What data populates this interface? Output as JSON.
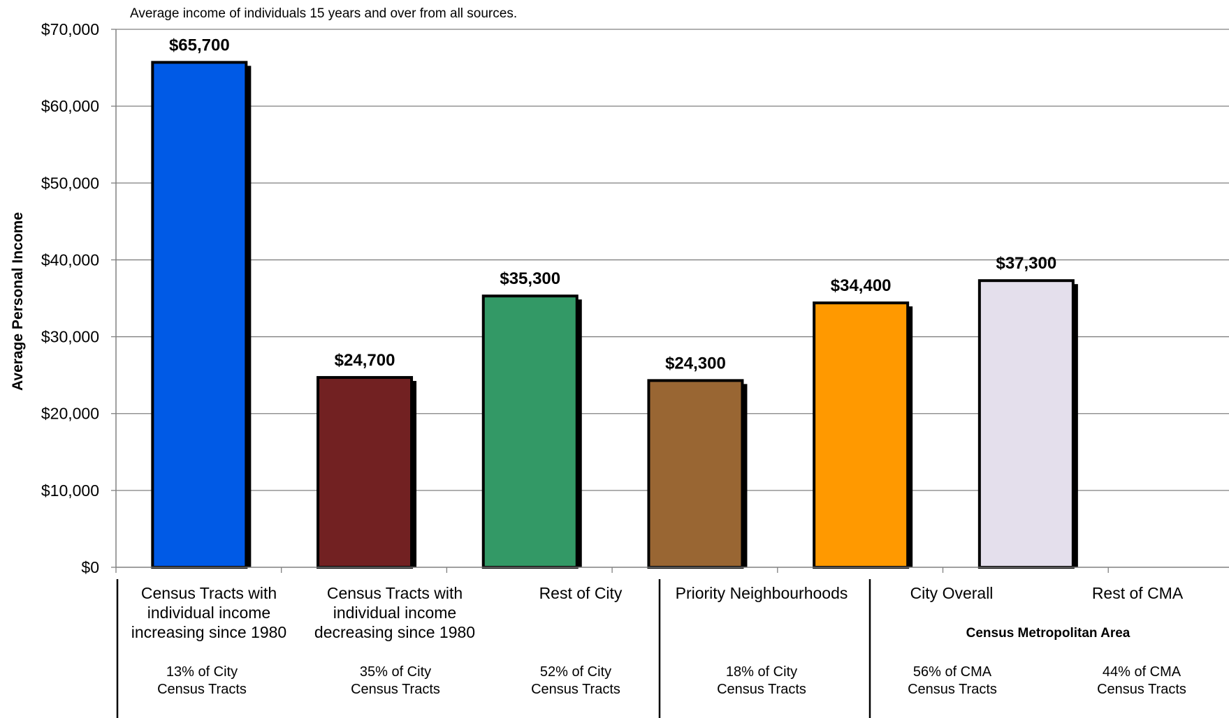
{
  "chart_data": {
    "type": "bar",
    "subtitle": "Average income of individuals 15 years and over from all sources.",
    "ylabel": "Average Personal Income",
    "ylim": [
      0,
      70000
    ],
    "yticks": [
      "$0",
      "$10,000",
      "$20,000",
      "$30,000",
      "$40,000",
      "$50,000",
      "$60,000",
      "$70,000"
    ],
    "grid": true,
    "categories": [
      {
        "lines": [
          "Census Tracts with",
          "individual income",
          "increasing since 1980"
        ],
        "share": [
          "13% of City",
          "Census Tracts"
        ]
      },
      {
        "lines": [
          "Census Tracts with",
          "individual income",
          "decreasing since 1980"
        ],
        "share": [
          "35% of City",
          "Census Tracts"
        ]
      },
      {
        "lines": [
          "Rest of City"
        ],
        "share": [
          "52% of City",
          "Census Tracts"
        ]
      },
      {
        "lines": [
          "Priority Neighbourhoods"
        ],
        "share": [
          "18% of City",
          "Census Tracts"
        ]
      },
      {
        "lines": [
          "City Overall"
        ],
        "share": [
          "56% of CMA",
          "Census Tracts"
        ]
      },
      {
        "lines": [
          "Rest of CMA"
        ],
        "share": [
          "44% of CMA",
          "Census Tracts"
        ]
      }
    ],
    "values": [
      65700,
      24700,
      35300,
      24300,
      34400,
      37300
    ],
    "value_labels": [
      "$65,700",
      "$24,700",
      "$35,300",
      "$24,300",
      "$34,400",
      "$37,300"
    ],
    "colors": [
      "#005ae6",
      "#722122",
      "#339966",
      "#996633",
      "#ff9900",
      "#e4dfec"
    ],
    "group_label": "Census Metropolitan Area"
  }
}
